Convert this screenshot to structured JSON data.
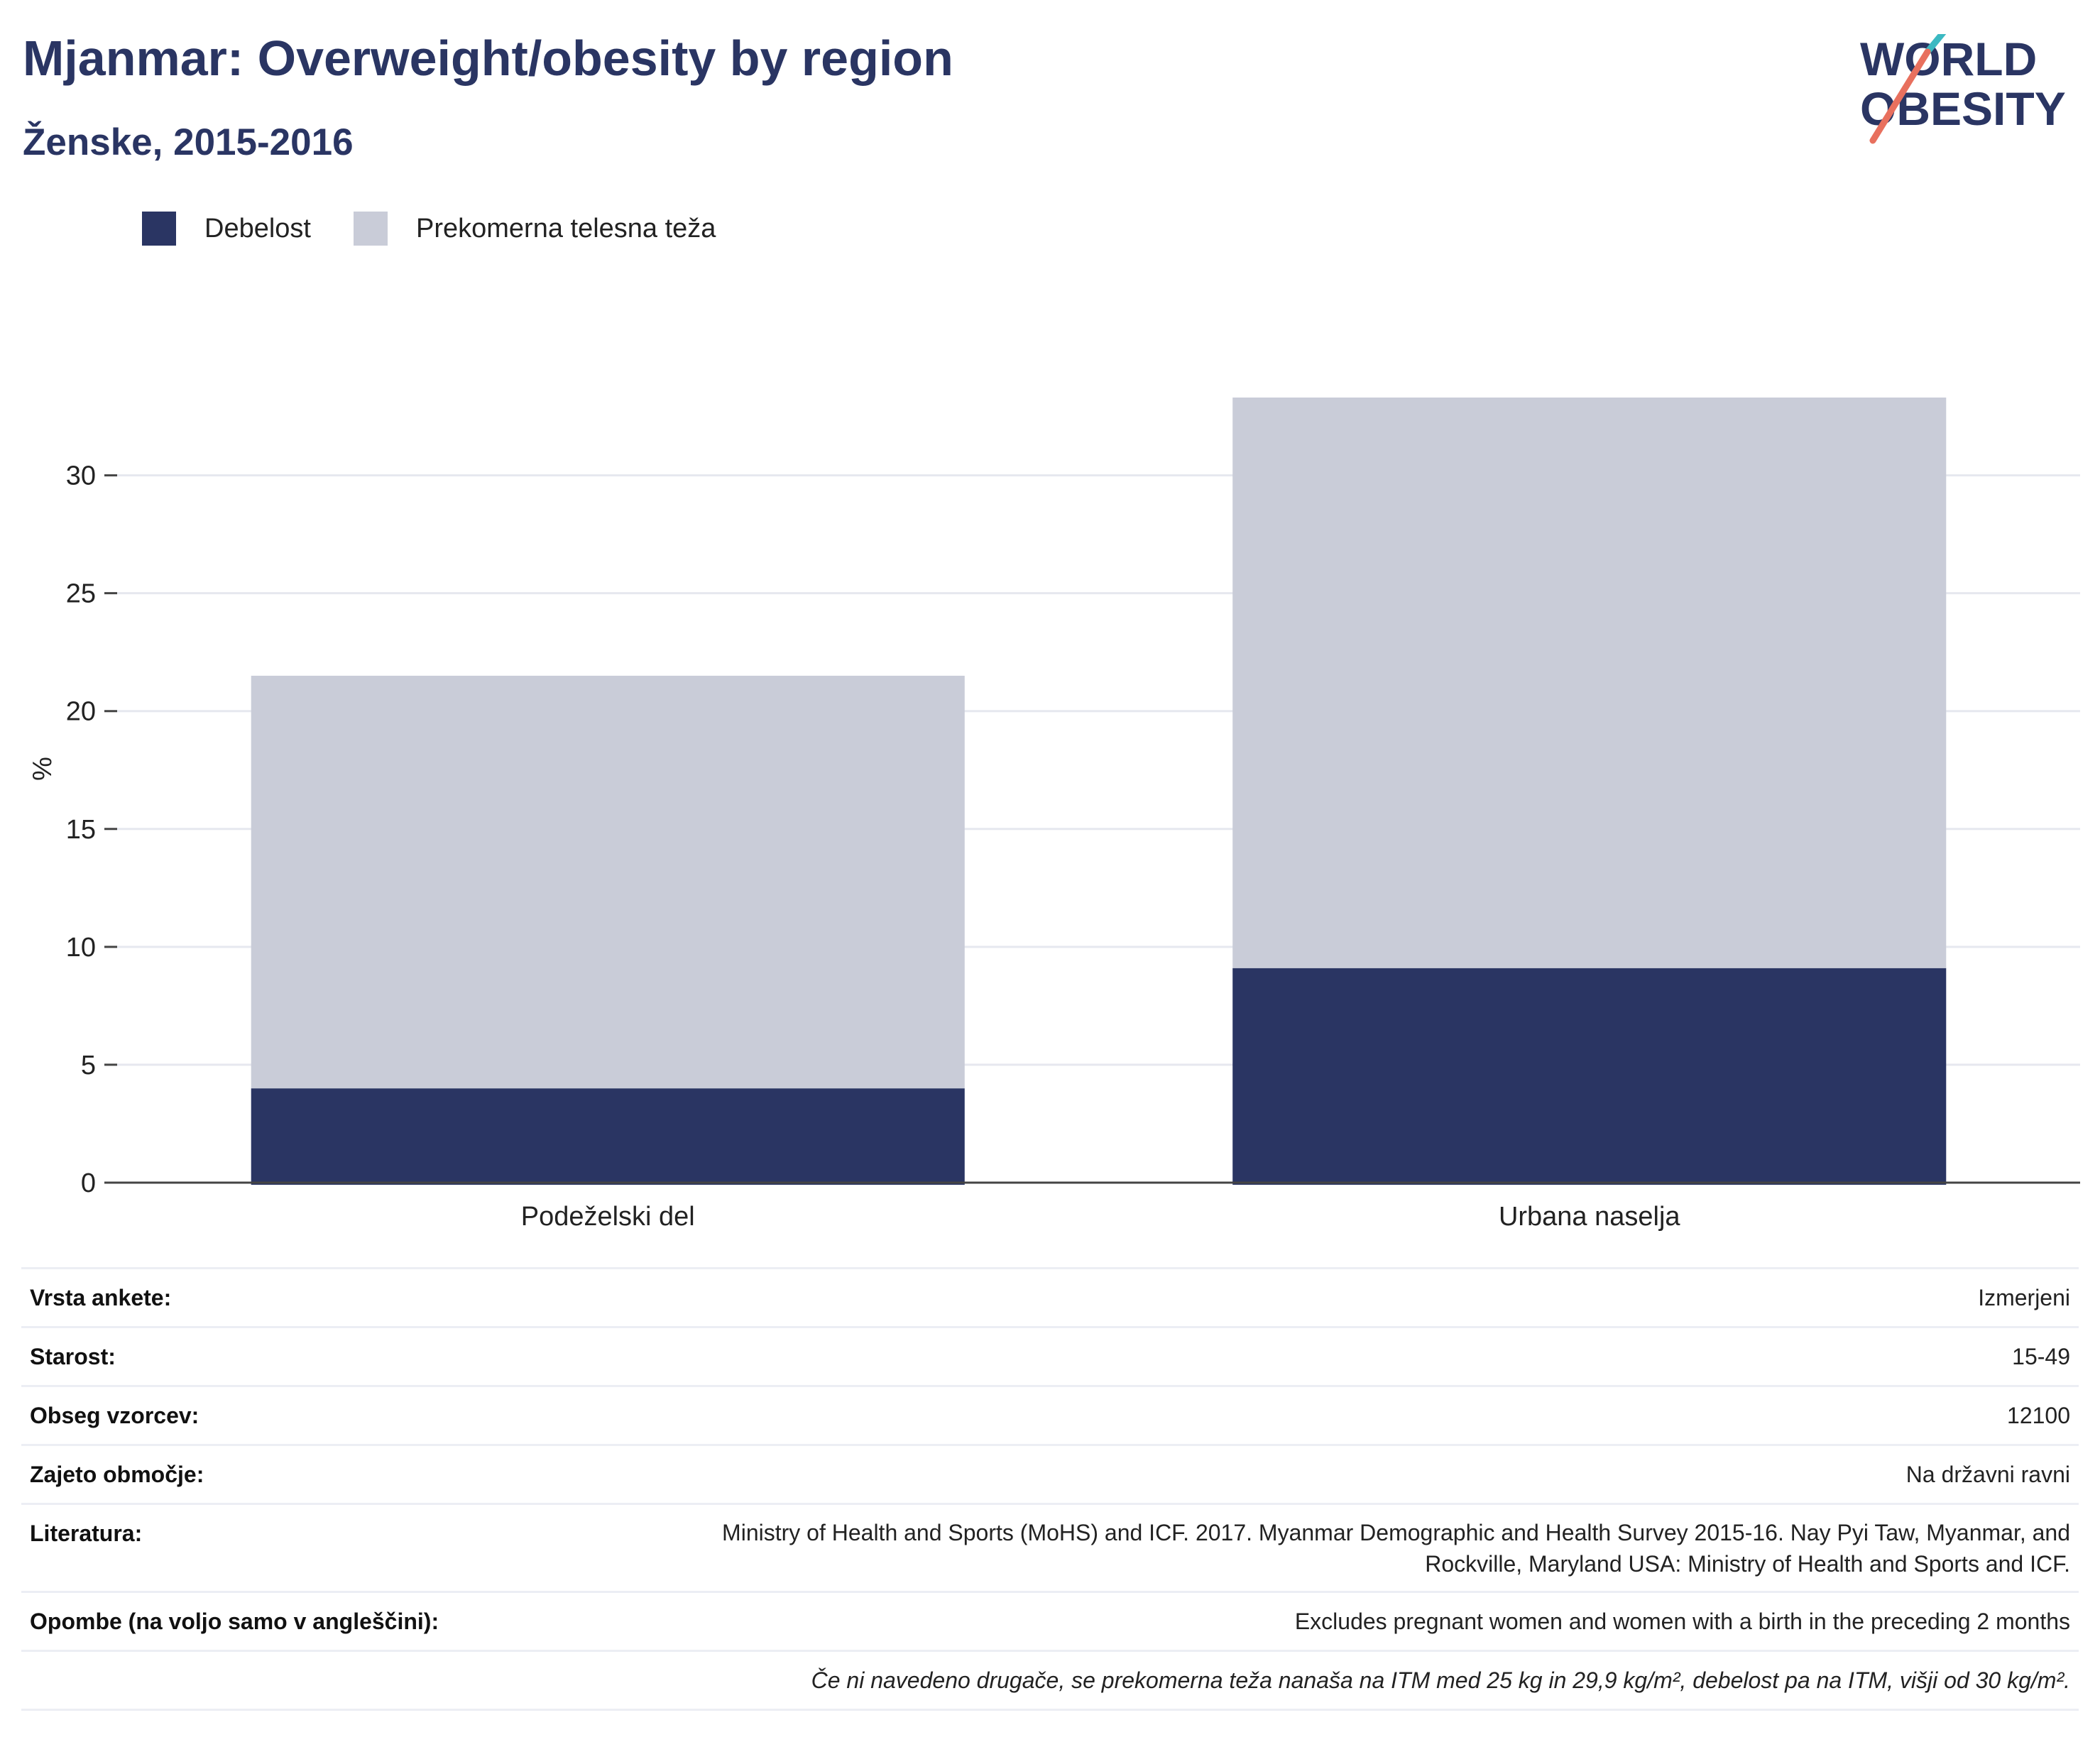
{
  "header": {
    "title": "Mjanmar: Overweight/obesity by region",
    "subtitle": "Ženske, 2015-2016"
  },
  "logo": {
    "line1": "WORLD",
    "line2": "OBESITY",
    "accent_colors": [
      "#3bb9c2",
      "#e8705e"
    ],
    "text_color": "#2a3563"
  },
  "legend": [
    {
      "label": "Debelost",
      "color": "#2a3563"
    },
    {
      "label": "Prekomerna telesna teža",
      "color": "#c9ccd8"
    }
  ],
  "chart_data": {
    "type": "bar",
    "stacked": true,
    "title": "Mjanmar: Overweight/obesity by region",
    "subtitle": "Ženske, 2015-2016",
    "xlabel": "",
    "ylabel": "%",
    "categories": [
      "Podeželski del",
      "Urbana naselja"
    ],
    "series": [
      {
        "name": "Debelost",
        "values": [
          4.0,
          9.1
        ],
        "color": "#2a3563"
      },
      {
        "name": "Prekomerna telesna teža",
        "values": [
          17.5,
          24.2
        ],
        "color": "#c9ccd8"
      }
    ],
    "ylim": [
      0,
      33.3
    ],
    "yticks": [
      0,
      5,
      10,
      15,
      20,
      25,
      30
    ],
    "grid": true,
    "legend_position": "top-left"
  },
  "info": {
    "rows": [
      {
        "key": "Vrsta ankete:",
        "value": "Izmerjeni"
      },
      {
        "key": "Starost:",
        "value": "15-49"
      },
      {
        "key": "Obseg vzorcev:",
        "value": "12100"
      },
      {
        "key": "Zajeto območje:",
        "value": "Na državni ravni"
      },
      {
        "key": "Literatura:",
        "value_lines": [
          "Ministry of Health and Sports (MoHS) and ICF. 2017. Myanmar Demographic and Health Survey 2015-16. Nay Pyi Taw, Myanmar, and",
          "Rockville, Maryland USA: Ministry of Health and Sports and ICF."
        ]
      },
      {
        "key": "Opombe (na voljo samo v angleščini):",
        "value": "Excludes pregnant women and women with a birth in the preceding 2 months"
      }
    ],
    "footnote": "Če ni navedeno drugače, se prekomerna teža nanaša na ITM med 25 kg in 29,9 kg/m², debelost pa na ITM, višji od 30 kg/m²."
  }
}
